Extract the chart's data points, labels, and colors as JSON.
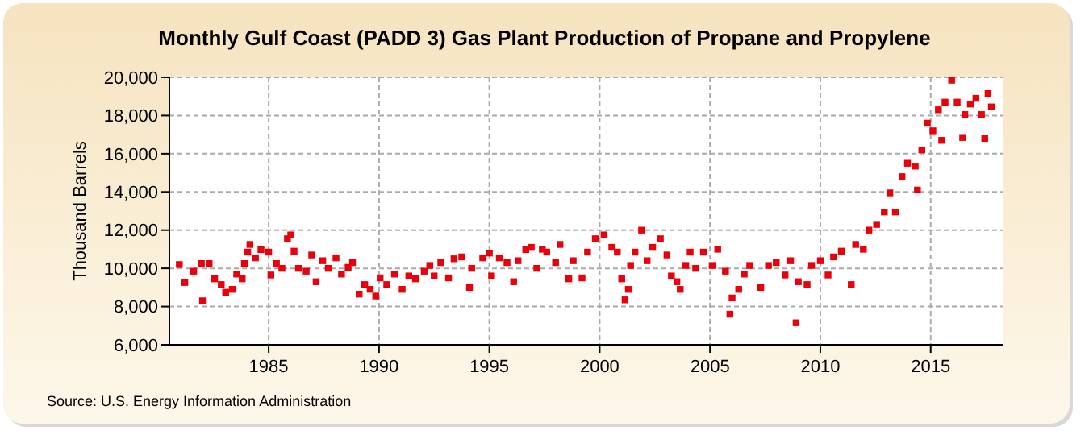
{
  "chart_data": {
    "type": "scatter",
    "title": "Monthly Gulf Coast (PADD 3) Gas Plant Production of Propane and Propylene",
    "ylabel": "Thousand Barrels",
    "annotations": [
      "Source: U.S. Energy Information Administration"
    ],
    "x": [
      1980.95,
      1981.2,
      1981.6,
      1981.95,
      1982.0,
      1982.3,
      1982.55,
      1982.85,
      1983.05,
      1983.35,
      1983.55,
      1983.8,
      1983.9,
      1984.05,
      1984.15,
      1984.4,
      1984.65,
      1985.0,
      1985.1,
      1985.35,
      1985.6,
      1985.85,
      1986.0,
      1986.15,
      1986.35,
      1986.7,
      1986.95,
      1987.15,
      1987.45,
      1987.7,
      1988.05,
      1988.3,
      1988.6,
      1988.8,
      1989.1,
      1989.35,
      1989.6,
      1989.85,
      1990.05,
      1990.35,
      1990.7,
      1991.05,
      1991.35,
      1991.65,
      1992.05,
      1992.3,
      1992.5,
      1992.8,
      1993.15,
      1993.4,
      1993.75,
      1994.1,
      1994.2,
      1994.7,
      1995.0,
      1995.1,
      1995.45,
      1995.8,
      1996.1,
      1996.3,
      1996.65,
      1996.9,
      1997.15,
      1997.4,
      1997.6,
      1998.0,
      1998.2,
      1998.6,
      1998.8,
      1999.2,
      1999.45,
      1999.8,
      2000.2,
      2000.55,
      2000.8,
      2001.0,
      2001.15,
      2001.3,
      2001.4,
      2001.6,
      2001.9,
      2002.15,
      2002.4,
      2002.75,
      2003.05,
      2003.25,
      2003.5,
      2003.65,
      2003.9,
      2004.1,
      2004.35,
      2004.7,
      2005.1,
      2005.35,
      2005.7,
      2005.9,
      2006.0,
      2006.3,
      2006.55,
      2006.8,
      2007.3,
      2007.65,
      2008.0,
      2008.4,
      2008.65,
      2008.9,
      2009.0,
      2009.4,
      2009.6,
      2010.0,
      2010.35,
      2010.6,
      2010.95,
      2011.4,
      2011.6,
      2011.95,
      2012.2,
      2012.55,
      2012.9,
      2013.15,
      2013.4,
      2013.7,
      2013.95,
      2014.3,
      2014.4,
      2014.6,
      2014.85,
      2015.1,
      2015.35,
      2015.5,
      2015.65,
      2015.95,
      2016.2,
      2016.45,
      2016.55,
      2016.8,
      2017.05,
      2017.3,
      2017.45,
      2017.6,
      2017.75
    ],
    "series": [
      {
        "color": "#e8000b",
        "values": [
          10200,
          9260,
          9850,
          10250,
          8300,
          10250,
          9450,
          9150,
          8750,
          8900,
          9700,
          9450,
          10250,
          10850,
          11250,
          10550,
          10980,
          10850,
          9650,
          10250,
          10000,
          11550,
          11750,
          10900,
          10000,
          9850,
          10700,
          9300,
          10400,
          10000,
          10550,
          9700,
          10050,
          10300,
          8650,
          9150,
          8900,
          8550,
          9500,
          9150,
          9700,
          8900,
          9600,
          9450,
          9850,
          10150,
          9600,
          10300,
          9500,
          10500,
          10600,
          9000,
          10000,
          10550,
          10800,
          9600,
          10550,
          10300,
          9300,
          10400,
          10980,
          11100,
          10000,
          11000,
          10850,
          10300,
          11250,
          9450,
          10400,
          9500,
          10850,
          11550,
          11750,
          11100,
          10850,
          9450,
          8350,
          8900,
          10150,
          10850,
          12000,
          10400,
          11100,
          11550,
          10700,
          9600,
          9300,
          8900,
          10150,
          10850,
          10000,
          10850,
          10150,
          11000,
          9850,
          7600,
          8450,
          8900,
          9700,
          10150,
          9000,
          10150,
          10300,
          9650,
          10400,
          7150,
          9300,
          9150,
          10150,
          10400,
          9650,
          10600,
          10900,
          9150,
          11250,
          11000,
          12000,
          12300,
          12950,
          13950,
          12950,
          14800,
          15500,
          15350,
          14100,
          16200,
          17600,
          17200,
          18300,
          16700,
          18700,
          19850,
          18700,
          16850,
          18050,
          18600,
          18900,
          18050,
          16800,
          19150,
          18450
        ]
      }
    ],
    "xlim": [
      1980.5,
      2018.3
    ],
    "xticks": [
      1985,
      1990,
      1995,
      2000,
      2005,
      2010,
      2015
    ],
    "ylim": [
      6000,
      20000
    ],
    "yticks": [
      {
        "value": 6000,
        "label": "6,000"
      },
      {
        "value": 8000,
        "label": "8,000"
      },
      {
        "value": 10000,
        "label": "10,000"
      },
      {
        "value": 12000,
        "label": "12,000"
      },
      {
        "value": 14000,
        "label": "14,000"
      },
      {
        "value": 16000,
        "label": "16,000"
      },
      {
        "value": 18000,
        "label": "18,000"
      },
      {
        "value": 20000,
        "label": "20,000"
      }
    ],
    "grid": true,
    "marker": "square"
  }
}
